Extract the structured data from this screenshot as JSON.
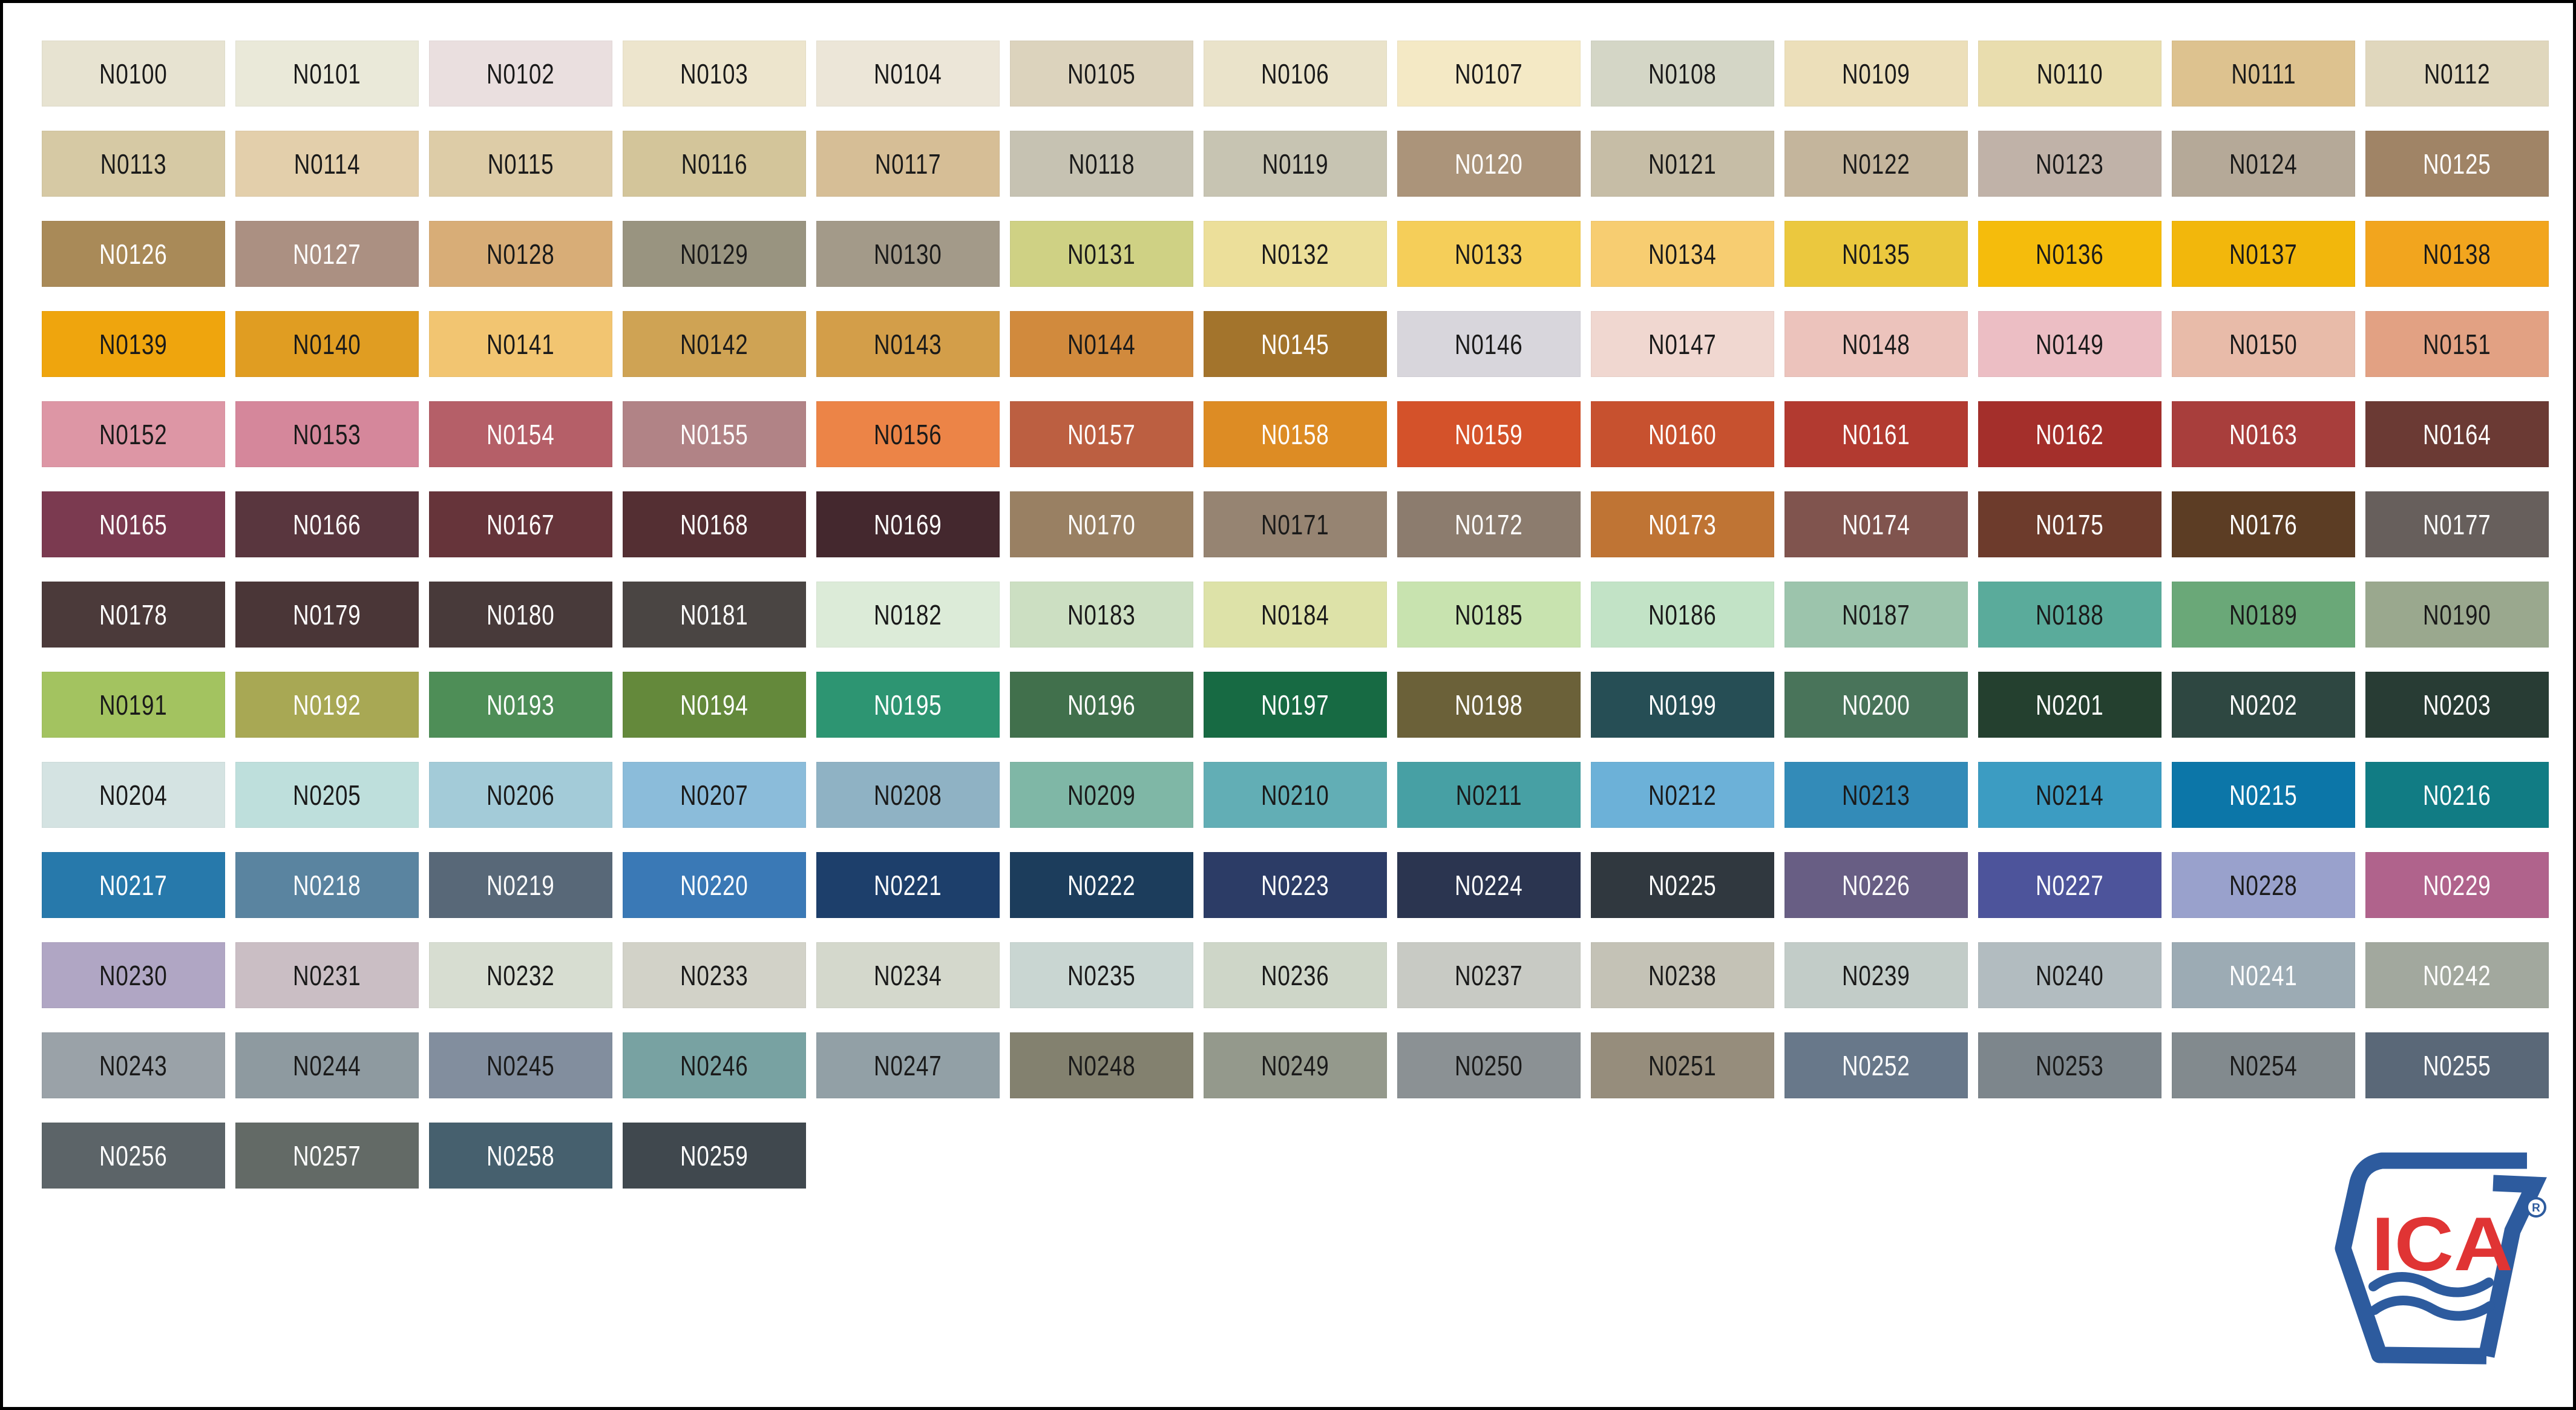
{
  "page": {
    "background": "#ffffff",
    "border_color": "#000000"
  },
  "logo": {
    "text": "ICA",
    "registered_letter": "R",
    "registered_mark": "®",
    "blue": "#2d5b9e",
    "red": "#e03434"
  },
  "chart_data": {
    "type": "table",
    "columns": 13,
    "rows": 13,
    "swatches": [
      {
        "code": "N0100",
        "hex": "#e7e3d1",
        "fg": "#1a1a1a"
      },
      {
        "code": "N0101",
        "hex": "#eae9d9",
        "fg": "#1a1a1a"
      },
      {
        "code": "N0102",
        "hex": "#eadfdf",
        "fg": "#1a1a1a"
      },
      {
        "code": "N0103",
        "hex": "#ede5cd",
        "fg": "#1a1a1a"
      },
      {
        "code": "N0104",
        "hex": "#ece6d8",
        "fg": "#1a1a1a"
      },
      {
        "code": "N0105",
        "hex": "#dcd3bd",
        "fg": "#1a1a1a"
      },
      {
        "code": "N0106",
        "hex": "#eae3ca",
        "fg": "#1a1a1a"
      },
      {
        "code": "N0107",
        "hex": "#f4e9c5",
        "fg": "#1a1a1a"
      },
      {
        "code": "N0108",
        "hex": "#d4d6c6",
        "fg": "#1a1a1a"
      },
      {
        "code": "N0109",
        "hex": "#ecdfba",
        "fg": "#1a1a1a"
      },
      {
        "code": "N0110",
        "hex": "#e9ddae",
        "fg": "#1a1a1a"
      },
      {
        "code": "N0111",
        "hex": "#ddc28f",
        "fg": "#1a1a1a"
      },
      {
        "code": "N0112",
        "hex": "#e0d7bd",
        "fg": "#1a1a1a"
      },
      {
        "code": "N0113",
        "hex": "#d6c9a4",
        "fg": "#1a1a1a"
      },
      {
        "code": "N0114",
        "hex": "#e3cfab",
        "fg": "#1a1a1a"
      },
      {
        "code": "N0115",
        "hex": "#ddcca7",
        "fg": "#1a1a1a"
      },
      {
        "code": "N0116",
        "hex": "#d3c59a",
        "fg": "#1a1a1a"
      },
      {
        "code": "N0117",
        "hex": "#d6be96",
        "fg": "#1a1a1a"
      },
      {
        "code": "N0118",
        "hex": "#c6c2b2",
        "fg": "#1a1a1a"
      },
      {
        "code": "N0119",
        "hex": "#c7c4b2",
        "fg": "#1a1a1a"
      },
      {
        "code": "N0120",
        "hex": "#ab947a",
        "fg": "#ffffff"
      },
      {
        "code": "N0121",
        "hex": "#c6bda6",
        "fg": "#1a1a1a"
      },
      {
        "code": "N0122",
        "hex": "#c4b59c",
        "fg": "#1a1a1a"
      },
      {
        "code": "N0123",
        "hex": "#c0b2a8",
        "fg": "#1a1a1a"
      },
      {
        "code": "N0124",
        "hex": "#b5a998",
        "fg": "#1a1a1a"
      },
      {
        "code": "N0125",
        "hex": "#a08466",
        "fg": "#ffffff"
      },
      {
        "code": "N0126",
        "hex": "#a98a58",
        "fg": "#ffffff"
      },
      {
        "code": "N0127",
        "hex": "#ab9082",
        "fg": "#ffffff"
      },
      {
        "code": "N0128",
        "hex": "#d8ad77",
        "fg": "#1a1a1a"
      },
      {
        "code": "N0129",
        "hex": "#999480",
        "fg": "#1a1a1a"
      },
      {
        "code": "N0130",
        "hex": "#a39a89",
        "fg": "#1a1a1a"
      },
      {
        "code": "N0131",
        "hex": "#cfd184",
        "fg": "#1a1a1a"
      },
      {
        "code": "N0132",
        "hex": "#ecdf9a",
        "fg": "#1a1a1a"
      },
      {
        "code": "N0133",
        "hex": "#f5ce59",
        "fg": "#1a1a1a"
      },
      {
        "code": "N0134",
        "hex": "#f7cd71",
        "fg": "#1a1a1a"
      },
      {
        "code": "N0135",
        "hex": "#ebc83e",
        "fg": "#1a1a1a"
      },
      {
        "code": "N0136",
        "hex": "#f5bc0c",
        "fg": "#1a1a1a"
      },
      {
        "code": "N0137",
        "hex": "#f2b70c",
        "fg": "#1a1a1a"
      },
      {
        "code": "N0138",
        "hex": "#f2a51e",
        "fg": "#1a1a1a"
      },
      {
        "code": "N0139",
        "hex": "#efa50d",
        "fg": "#1a1a1a"
      },
      {
        "code": "N0140",
        "hex": "#e09d22",
        "fg": "#1a1a1a"
      },
      {
        "code": "N0141",
        "hex": "#f2c571",
        "fg": "#1a1a1a"
      },
      {
        "code": "N0142",
        "hex": "#cfa354",
        "fg": "#1a1a1a"
      },
      {
        "code": "N0143",
        "hex": "#d39e49",
        "fg": "#1a1a1a"
      },
      {
        "code": "N0144",
        "hex": "#d18a3d",
        "fg": "#1a1a1a"
      },
      {
        "code": "N0145",
        "hex": "#a3742c",
        "fg": "#ffffff"
      },
      {
        "code": "N0146",
        "hex": "#d8d6dc",
        "fg": "#1a1a1a"
      },
      {
        "code": "N0147",
        "hex": "#f0d7d0",
        "fg": "#1a1a1a"
      },
      {
        "code": "N0148",
        "hex": "#ecc3bc",
        "fg": "#1a1a1a"
      },
      {
        "code": "N0149",
        "hex": "#ecbec4",
        "fg": "#1a1a1a"
      },
      {
        "code": "N0150",
        "hex": "#e8bba9",
        "fg": "#1a1a1a"
      },
      {
        "code": "N0151",
        "hex": "#e2a183",
        "fg": "#1a1a1a"
      },
      {
        "code": "N0152",
        "hex": "#dd96a5",
        "fg": "#1a1a1a"
      },
      {
        "code": "N0153",
        "hex": "#d5879b",
        "fg": "#1a1a1a"
      },
      {
        "code": "N0154",
        "hex": "#b55f68",
        "fg": "#ffffff"
      },
      {
        "code": "N0155",
        "hex": "#b18386",
        "fg": "#ffffff"
      },
      {
        "code": "N0156",
        "hex": "#ec8447",
        "fg": "#1a1a1a"
      },
      {
        "code": "N0157",
        "hex": "#bc5f41",
        "fg": "#ffffff"
      },
      {
        "code": "N0158",
        "hex": "#dd8c24",
        "fg": "#ffffff"
      },
      {
        "code": "N0159",
        "hex": "#d4522a",
        "fg": "#ffffff"
      },
      {
        "code": "N0160",
        "hex": "#c7512f",
        "fg": "#ffffff"
      },
      {
        "code": "N0161",
        "hex": "#b23a30",
        "fg": "#ffffff"
      },
      {
        "code": "N0162",
        "hex": "#a42f2b",
        "fg": "#ffffff"
      },
      {
        "code": "N0163",
        "hex": "#a83e3c",
        "fg": "#ffffff"
      },
      {
        "code": "N0164",
        "hex": "#6b3a34",
        "fg": "#ffffff"
      },
      {
        "code": "N0165",
        "hex": "#7b3a50",
        "fg": "#ffffff"
      },
      {
        "code": "N0166",
        "hex": "#59363e",
        "fg": "#ffffff"
      },
      {
        "code": "N0167",
        "hex": "#66343a",
        "fg": "#ffffff"
      },
      {
        "code": "N0168",
        "hex": "#542f33",
        "fg": "#ffffff"
      },
      {
        "code": "N0169",
        "hex": "#44282e",
        "fg": "#ffffff"
      },
      {
        "code": "N0170",
        "hex": "#998063",
        "fg": "#ffffff"
      },
      {
        "code": "N0171",
        "hex": "#968472",
        "fg": "#1a1a1a"
      },
      {
        "code": "N0172",
        "hex": "#8c7c6e",
        "fg": "#ffffff"
      },
      {
        "code": "N0173",
        "hex": "#bf7434",
        "fg": "#ffffff"
      },
      {
        "code": "N0174",
        "hex": "#80544e",
        "fg": "#ffffff"
      },
      {
        "code": "N0175",
        "hex": "#6d3b2c",
        "fg": "#ffffff"
      },
      {
        "code": "N0176",
        "hex": "#5c3d24",
        "fg": "#ffffff"
      },
      {
        "code": "N0177",
        "hex": "#675f5c",
        "fg": "#ffffff"
      },
      {
        "code": "N0178",
        "hex": "#4b3a3a",
        "fg": "#ffffff"
      },
      {
        "code": "N0179",
        "hex": "#4a3637",
        "fg": "#ffffff"
      },
      {
        "code": "N0180",
        "hex": "#483a3a",
        "fg": "#ffffff"
      },
      {
        "code": "N0181",
        "hex": "#4a4543",
        "fg": "#ffffff"
      },
      {
        "code": "N0182",
        "hex": "#dcebd8",
        "fg": "#1a1a1a"
      },
      {
        "code": "N0183",
        "hex": "#ccdfc2",
        "fg": "#1a1a1a"
      },
      {
        "code": "N0184",
        "hex": "#dde2a8",
        "fg": "#1a1a1a"
      },
      {
        "code": "N0185",
        "hex": "#c8e3af",
        "fg": "#1a1a1a"
      },
      {
        "code": "N0186",
        "hex": "#c2e3c6",
        "fg": "#1a1a1a"
      },
      {
        "code": "N0187",
        "hex": "#9cc4ac",
        "fg": "#1a1a1a"
      },
      {
        "code": "N0188",
        "hex": "#5aab9b",
        "fg": "#1a1a1a"
      },
      {
        "code": "N0189",
        "hex": "#6aa878",
        "fg": "#1a1a1a"
      },
      {
        "code": "N0190",
        "hex": "#9aa88e",
        "fg": "#1a1a1a"
      },
      {
        "code": "N0191",
        "hex": "#a3c360",
        "fg": "#1a1a1a"
      },
      {
        "code": "N0192",
        "hex": "#a8a854",
        "fg": "#ffffff"
      },
      {
        "code": "N0193",
        "hex": "#4e8e57",
        "fg": "#ffffff"
      },
      {
        "code": "N0194",
        "hex": "#64893b",
        "fg": "#ffffff"
      },
      {
        "code": "N0195",
        "hex": "#2d9572",
        "fg": "#ffffff"
      },
      {
        "code": "N0196",
        "hex": "#41704c",
        "fg": "#ffffff"
      },
      {
        "code": "N0197",
        "hex": "#176a43",
        "fg": "#ffffff"
      },
      {
        "code": "N0198",
        "hex": "#6b6139",
        "fg": "#ffffff"
      },
      {
        "code": "N0199",
        "hex": "#264e55",
        "fg": "#ffffff"
      },
      {
        "code": "N0200",
        "hex": "#49745a",
        "fg": "#ffffff"
      },
      {
        "code": "N0201",
        "hex": "#24402f",
        "fg": "#ffffff"
      },
      {
        "code": "N0202",
        "hex": "#2e4741",
        "fg": "#ffffff"
      },
      {
        "code": "N0203",
        "hex": "#283c34",
        "fg": "#ffffff"
      },
      {
        "code": "N0204",
        "hex": "#d4e3e2",
        "fg": "#1a1a1a"
      },
      {
        "code": "N0205",
        "hex": "#bedfdc",
        "fg": "#1a1a1a"
      },
      {
        "code": "N0206",
        "hex": "#a3cbd8",
        "fg": "#1a1a1a"
      },
      {
        "code": "N0207",
        "hex": "#8bbcda",
        "fg": "#1a1a1a"
      },
      {
        "code": "N0208",
        "hex": "#8fb2c4",
        "fg": "#1a1a1a"
      },
      {
        "code": "N0209",
        "hex": "#7fb7a6",
        "fg": "#1a1a1a"
      },
      {
        "code": "N0210",
        "hex": "#62aeb5",
        "fg": "#1a1a1a"
      },
      {
        "code": "N0211",
        "hex": "#47a0a4",
        "fg": "#1a1a1a"
      },
      {
        "code": "N0212",
        "hex": "#6cb1d8",
        "fg": "#1a1a1a"
      },
      {
        "code": "N0213",
        "hex": "#338bb8",
        "fg": "#1a1a1a"
      },
      {
        "code": "N0214",
        "hex": "#3c9cc2",
        "fg": "#1a1a1a"
      },
      {
        "code": "N0215",
        "hex": "#0c76a8",
        "fg": "#ffffff"
      },
      {
        "code": "N0216",
        "hex": "#117c84",
        "fg": "#ffffff"
      },
      {
        "code": "N0217",
        "hex": "#2779ab",
        "fg": "#ffffff"
      },
      {
        "code": "N0218",
        "hex": "#5a84a0",
        "fg": "#ffffff"
      },
      {
        "code": "N0219",
        "hex": "#586878",
        "fg": "#ffffff"
      },
      {
        "code": "N0220",
        "hex": "#3a79b6",
        "fg": "#ffffff"
      },
      {
        "code": "N0221",
        "hex": "#1d3f6b",
        "fg": "#ffffff"
      },
      {
        "code": "N0222",
        "hex": "#1c3d5c",
        "fg": "#ffffff"
      },
      {
        "code": "N0223",
        "hex": "#2c3c66",
        "fg": "#ffffff"
      },
      {
        "code": "N0224",
        "hex": "#2b3550",
        "fg": "#ffffff"
      },
      {
        "code": "N0225",
        "hex": "#30383f",
        "fg": "#ffffff"
      },
      {
        "code": "N0226",
        "hex": "#685e84",
        "fg": "#ffffff"
      },
      {
        "code": "N0227",
        "hex": "#4d549b",
        "fg": "#ffffff"
      },
      {
        "code": "N0228",
        "hex": "#99a1cc",
        "fg": "#1a1a1a"
      },
      {
        "code": "N0229",
        "hex": "#b0638c",
        "fg": "#ffffff"
      },
      {
        "code": "N0230",
        "hex": "#b0a6c4",
        "fg": "#1a1a1a"
      },
      {
        "code": "N0231",
        "hex": "#cabec4",
        "fg": "#1a1a1a"
      },
      {
        "code": "N0232",
        "hex": "#d7ddd1",
        "fg": "#1a1a1a"
      },
      {
        "code": "N0233",
        "hex": "#d2d2c8",
        "fg": "#1a1a1a"
      },
      {
        "code": "N0234",
        "hex": "#d4d8cc",
        "fg": "#1a1a1a"
      },
      {
        "code": "N0235",
        "hex": "#c9d6d2",
        "fg": "#1a1a1a"
      },
      {
        "code": "N0236",
        "hex": "#ced6c8",
        "fg": "#1a1a1a"
      },
      {
        "code": "N0237",
        "hex": "#c8cac4",
        "fg": "#1a1a1a"
      },
      {
        "code": "N0238",
        "hex": "#c4c2b6",
        "fg": "#1a1a1a"
      },
      {
        "code": "N0239",
        "hex": "#c2ccc8",
        "fg": "#1a1a1a"
      },
      {
        "code": "N0240",
        "hex": "#b2bcc0",
        "fg": "#1a1a1a"
      },
      {
        "code": "N0241",
        "hex": "#9cabb4",
        "fg": "#ffffff"
      },
      {
        "code": "N0242",
        "hex": "#a2a89e",
        "fg": "#ffffff"
      },
      {
        "code": "N0243",
        "hex": "#9aa2a8",
        "fg": "#1a1a1a"
      },
      {
        "code": "N0244",
        "hex": "#8e9aa0",
        "fg": "#1a1a1a"
      },
      {
        "code": "N0245",
        "hex": "#828e9e",
        "fg": "#1a1a1a"
      },
      {
        "code": "N0246",
        "hex": "#78a2a2",
        "fg": "#1a1a1a"
      },
      {
        "code": "N0247",
        "hex": "#92a0a6",
        "fg": "#1a1a1a"
      },
      {
        "code": "N0248",
        "hex": "#83816f",
        "fg": "#1a1a1a"
      },
      {
        "code": "N0249",
        "hex": "#94998c",
        "fg": "#1a1a1a"
      },
      {
        "code": "N0250",
        "hex": "#8b9194",
        "fg": "#1a1a1a"
      },
      {
        "code": "N0251",
        "hex": "#968d7c",
        "fg": "#1a1a1a"
      },
      {
        "code": "N0252",
        "hex": "#68788a",
        "fg": "#ffffff"
      },
      {
        "code": "N0253",
        "hex": "#7d868c",
        "fg": "#1a1a1a"
      },
      {
        "code": "N0254",
        "hex": "#828a8e",
        "fg": "#1a1a1a"
      },
      {
        "code": "N0255",
        "hex": "#5a6878",
        "fg": "#ffffff"
      },
      {
        "code": "N0256",
        "hex": "#5c6468",
        "fg": "#ffffff"
      },
      {
        "code": "N0257",
        "hex": "#636a66",
        "fg": "#ffffff"
      },
      {
        "code": "N0258",
        "hex": "#46606e",
        "fg": "#ffffff"
      },
      {
        "code": "N0259",
        "hex": "#40484e",
        "fg": "#ffffff"
      }
    ]
  }
}
